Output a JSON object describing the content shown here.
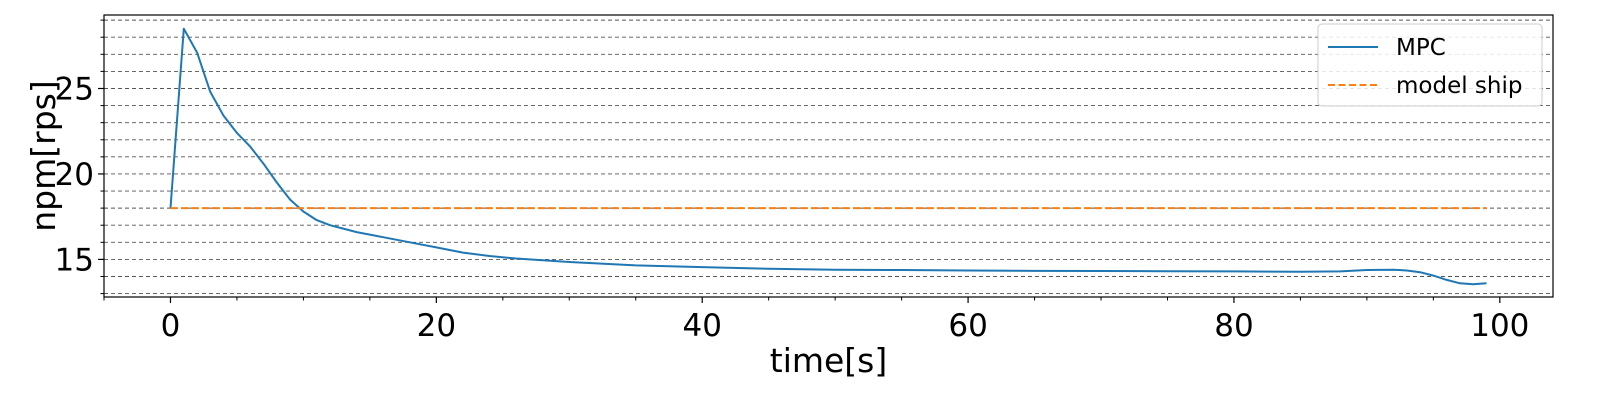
{
  "chart_data": {
    "type": "line",
    "title": "",
    "xlabel": "time[s]",
    "ylabel": "npm[rps]",
    "xlim": [
      -5,
      104
    ],
    "ylim": [
      12.8,
      29.3
    ],
    "xticks": [
      0,
      20,
      40,
      60,
      80,
      100
    ],
    "yticks": [
      15,
      20,
      25
    ],
    "grid": "y-major-and-minor-dashed",
    "legend_position": "upper-right",
    "series": [
      {
        "name": "MPC",
        "color": "#1f77b4",
        "style": "solid",
        "x": [
          0,
          1,
          2,
          3,
          4,
          5,
          6,
          7,
          8,
          9,
          10,
          11,
          12,
          13,
          14,
          15,
          16,
          18,
          20,
          22,
          24,
          26,
          28,
          30,
          35,
          40,
          45,
          50,
          55,
          60,
          65,
          70,
          75,
          80,
          85,
          88,
          90,
          92,
          93,
          94,
          95,
          96,
          97,
          98,
          99
        ],
        "y": [
          18.0,
          28.5,
          27.1,
          24.8,
          23.4,
          22.4,
          21.6,
          20.6,
          19.5,
          18.5,
          17.8,
          17.3,
          17.0,
          16.8,
          16.6,
          16.45,
          16.3,
          16.0,
          15.7,
          15.4,
          15.2,
          15.05,
          14.95,
          14.85,
          14.65,
          14.55,
          14.45,
          14.4,
          14.38,
          14.35,
          14.33,
          14.32,
          14.31,
          14.3,
          14.28,
          14.3,
          14.38,
          14.4,
          14.35,
          14.25,
          14.05,
          13.8,
          13.6,
          13.55,
          13.6
        ]
      },
      {
        "name": "model ship",
        "color": "#ff7f0e",
        "style": "dashed",
        "x": [
          0,
          99
        ],
        "y": [
          18.0,
          18.0
        ]
      }
    ]
  }
}
